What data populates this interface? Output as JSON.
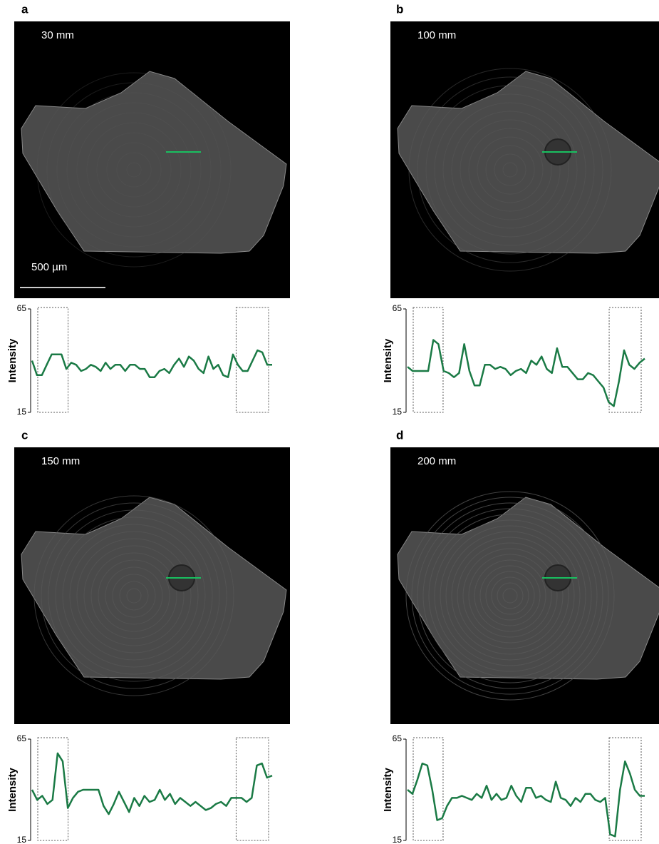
{
  "chart_data": [
    {
      "type": "line",
      "panel_label": "a",
      "annotations": [
        "30 mm",
        "500 µm"
      ],
      "ylabel": "Intensity",
      "color": "#1a7a45",
      "ylim": [
        15,
        65
      ],
      "yticks": [
        15,
        65
      ],
      "values": [
        40,
        33,
        33,
        38,
        43,
        43,
        43,
        36,
        39,
        38,
        35,
        36,
        38,
        37,
        35,
        39,
        36,
        38,
        38,
        35,
        38,
        38,
        36,
        36,
        32,
        32,
        35,
        36,
        34,
        38,
        41,
        37,
        42,
        40,
        36,
        34,
        42,
        36,
        38,
        33,
        32,
        43,
        38,
        35,
        35,
        40,
        45,
        44,
        38,
        38
      ]
    },
    {
      "type": "line",
      "panel_label": "b",
      "annotations": [
        "100 mm"
      ],
      "ylabel": "Intensity",
      "color": "#1a7a45",
      "ylim": [
        15,
        65
      ],
      "yticks": [
        15,
        65
      ],
      "values": [
        37,
        35,
        35,
        35,
        35,
        50,
        48,
        35,
        34,
        32,
        34,
        48,
        35,
        28,
        28,
        38,
        38,
        36,
        37,
        36,
        33,
        35,
        36,
        34,
        40,
        38,
        42,
        36,
        34,
        46,
        37,
        37,
        34,
        31,
        31,
        34,
        33,
        30,
        27,
        20,
        18,
        30,
        45,
        38,
        36,
        39,
        41
      ]
    },
    {
      "type": "line",
      "panel_label": "c",
      "annotations": [
        "150 mm"
      ],
      "ylabel": "Intensity",
      "color": "#1a7a45",
      "ylim": [
        15,
        65
      ],
      "yticks": [
        15,
        65
      ],
      "values": [
        40,
        35,
        37,
        33,
        35,
        58,
        54,
        31,
        36,
        39,
        40,
        40,
        40,
        40,
        32,
        28,
        33,
        39,
        34,
        29,
        36,
        32,
        37,
        34,
        35,
        40,
        35,
        38,
        33,
        36,
        34,
        32,
        34,
        32,
        30,
        31,
        33,
        34,
        32,
        36,
        36,
        36,
        34,
        36,
        52,
        53,
        46,
        47
      ]
    },
    {
      "type": "line",
      "panel_label": "d",
      "annotations": [
        "200 mm"
      ],
      "ylabel": "Intensity",
      "color": "#1a7a45",
      "ylim": [
        15,
        65
      ],
      "yticks": [
        15,
        65
      ],
      "values": [
        40,
        38,
        45,
        53,
        52,
        40,
        25,
        26,
        32,
        36,
        36,
        37,
        36,
        35,
        38,
        36,
        42,
        35,
        38,
        35,
        36,
        42,
        37,
        34,
        41,
        41,
        36,
        37,
        35,
        34,
        44,
        36,
        35,
        32,
        36,
        34,
        38,
        38,
        35,
        34,
        36,
        18,
        17,
        40,
        54,
        48,
        40,
        37,
        37
      ]
    }
  ]
}
